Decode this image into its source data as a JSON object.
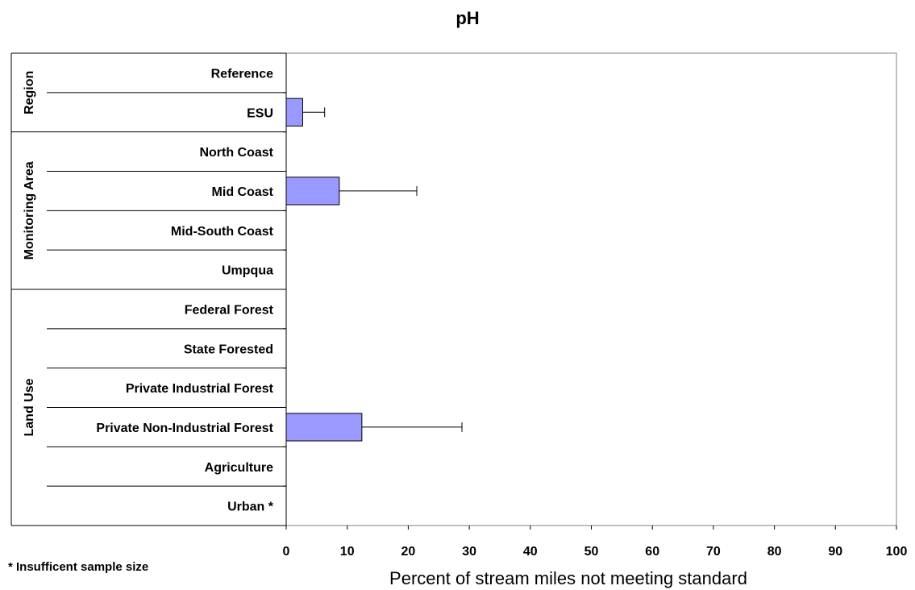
{
  "chart_data": {
    "type": "bar",
    "orientation": "horizontal",
    "title": "pH",
    "xlabel": "Percent of stream miles not meeting standard",
    "xlim": [
      0,
      100
    ],
    "xticks": [
      "0",
      "10",
      "20",
      "30",
      "40",
      "50",
      "60",
      "70",
      "80",
      "90",
      "100"
    ],
    "groups": [
      {
        "name": "Region",
        "categories": [
          "Reference",
          "ESU"
        ]
      },
      {
        "name": "Monitoring Area",
        "categories": [
          "North Coast",
          "Mid Coast",
          "Mid-South Coast",
          "Umpqua"
        ]
      },
      {
        "name": "Land Use",
        "categories": [
          "Federal Forest",
          "State Forested",
          "Private Industrial Forest",
          "Private Non-Industrial Forest",
          "Agriculture",
          "Urban *"
        ]
      }
    ],
    "categories": [
      "Reference",
      "ESU",
      "North Coast",
      "Mid Coast",
      "Mid-South Coast",
      "Umpqua",
      "Federal Forest",
      "State Forested",
      "Private Industrial Forest",
      "Private Non-Industrial Forest",
      "Agriculture",
      "Urban *"
    ],
    "values": [
      0,
      2.7,
      0,
      8.7,
      0,
      0,
      0,
      0,
      0,
      12.4,
      0,
      0
    ],
    "error_upper": [
      null,
      6.3,
      null,
      21.4,
      null,
      null,
      null,
      null,
      null,
      28.8,
      null,
      null
    ],
    "bar_color": "#9999ff",
    "grid": false,
    "legend": "none",
    "footnote": "* Insufficent sample size"
  }
}
